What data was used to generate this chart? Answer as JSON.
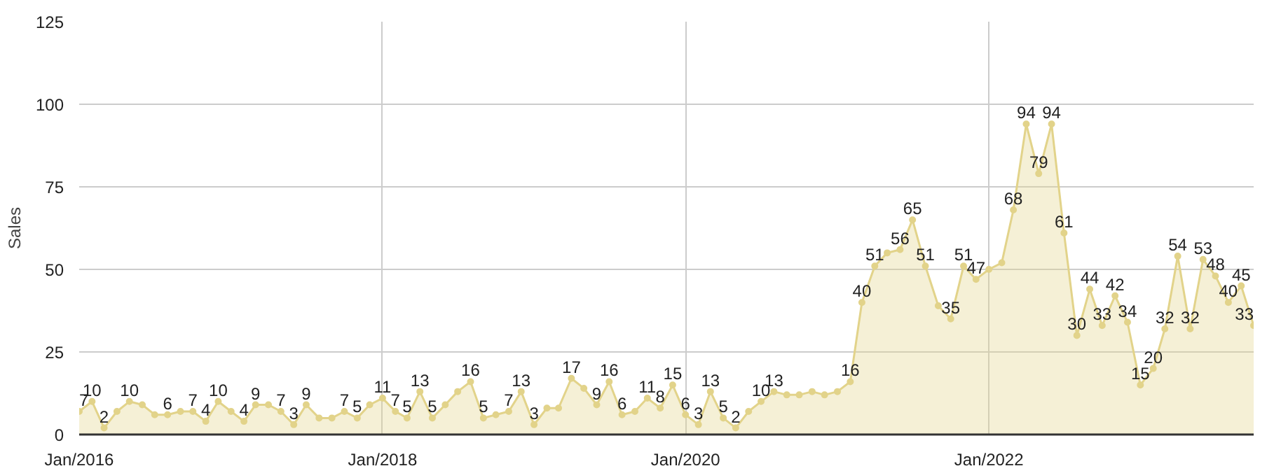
{
  "chart_data": {
    "type": "area",
    "ylabel": "Sales",
    "x": [
      "2016-01",
      "2016-02",
      "2016-03",
      "2016-04",
      "2016-05",
      "2016-06",
      "2016-07",
      "2016-08",
      "2016-09",
      "2016-10",
      "2016-11",
      "2016-12",
      "2017-01",
      "2017-02",
      "2017-03",
      "2017-04",
      "2017-05",
      "2017-06",
      "2017-07",
      "2017-08",
      "2017-09",
      "2017-10",
      "2017-11",
      "2017-12",
      "2018-01",
      "2018-02",
      "2018-03",
      "2018-04",
      "2018-05",
      "2018-06",
      "2018-07",
      "2018-08",
      "2018-09",
      "2018-10",
      "2018-11",
      "2018-12",
      "2019-01",
      "2019-02",
      "2019-03",
      "2019-04",
      "2019-05",
      "2019-06",
      "2019-07",
      "2019-08",
      "2019-09",
      "2019-10",
      "2019-11",
      "2019-12",
      "2020-01",
      "2020-02",
      "2020-03",
      "2020-04",
      "2020-05",
      "2020-06",
      "2020-07",
      "2020-08",
      "2020-09",
      "2020-10",
      "2020-11",
      "2020-12",
      "2021-01",
      "2021-02",
      "2021-03",
      "2021-04",
      "2021-05",
      "2021-06",
      "2021-07",
      "2021-08",
      "2021-09",
      "2021-10",
      "2021-11",
      "2021-12",
      "2022-01",
      "2022-02",
      "2022-03",
      "2022-04",
      "2022-05",
      "2022-06",
      "2022-07",
      "2022-08",
      "2022-09",
      "2022-10",
      "2022-11",
      "2022-12",
      "2023-01",
      "2023-02",
      "2023-03",
      "2023-04",
      "2023-05",
      "2023-06",
      "2023-07",
      "2023-08",
      "2023-09",
      "2023-10"
    ],
    "series": [
      {
        "color": "#e2d38a",
        "values": [
          7,
          10,
          2,
          7,
          10,
          9,
          6,
          6,
          7,
          7,
          4,
          10,
          7,
          4,
          9,
          9,
          7,
          3,
          9,
          5,
          5,
          7,
          5,
          9,
          11,
          7,
          5,
          13,
          5,
          9,
          13,
          16,
          5,
          6,
          7,
          13,
          3,
          8,
          8,
          17,
          14,
          9,
          16,
          6,
          7,
          11,
          8,
          15,
          6,
          3,
          13,
          5,
          2,
          7,
          10,
          13,
          12,
          12,
          13,
          12,
          13,
          16,
          40,
          51,
          55,
          56,
          65,
          51,
          39,
          35,
          51,
          47,
          50,
          52,
          68,
          94,
          79,
          94,
          61,
          30,
          44,
          33,
          42,
          34,
          15,
          20,
          32,
          54,
          32,
          53,
          48,
          40,
          45,
          33
        ],
        "value_labels": [
          "7",
          "10",
          "2",
          null,
          "10",
          null,
          null,
          "6",
          null,
          "7",
          "4",
          "10",
          null,
          "4",
          "9",
          null,
          "7",
          "3",
          "9",
          null,
          null,
          "7",
          "5",
          null,
          "11",
          "7",
          "5",
          "13",
          "5",
          null,
          null,
          "16",
          "5",
          null,
          "7",
          "13",
          "3",
          null,
          null,
          "17",
          null,
          "9",
          "16",
          "6",
          null,
          "11",
          "8",
          "15",
          "6",
          "3",
          "13",
          "5",
          "2",
          null,
          "10",
          "13",
          null,
          null,
          null,
          null,
          null,
          "16",
          "40",
          "51",
          null,
          "56",
          "65",
          "51",
          null,
          "35",
          "51",
          "47",
          null,
          null,
          "68",
          "94",
          "79",
          "94",
          "61",
          "30",
          "44",
          "33",
          "42",
          "34",
          "15",
          "20",
          "32",
          "54",
          "32",
          "53",
          "48",
          "40",
          "45",
          "33"
        ]
      }
    ],
    "xlim": [
      "2016-01",
      "2023-10"
    ],
    "xticks": [
      {
        "value": "2016-01",
        "label": "Jan/2016"
      },
      {
        "value": "2018-01",
        "label": "Jan/2018"
      },
      {
        "value": "2020-01",
        "label": "Jan/2020"
      },
      {
        "value": "2022-01",
        "label": "Jan/2022"
      }
    ],
    "ylim": [
      0,
      125
    ],
    "yticks": [
      0,
      25,
      50,
      75,
      100,
      125
    ],
    "grid": true,
    "marker": "circle"
  }
}
